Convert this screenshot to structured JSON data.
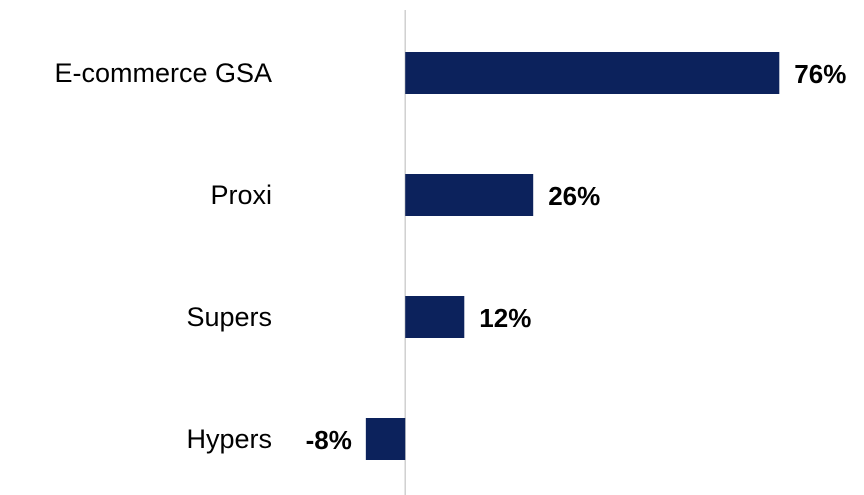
{
  "chart_data": {
    "type": "hbar",
    "categories": [
      "E-commerce GSA",
      "Proxi",
      "Supers",
      "Hypers"
    ],
    "values": [
      76,
      26,
      12,
      -8
    ],
    "value_labels": [
      "76%",
      "26%",
      "12%",
      "-8%"
    ],
    "color": "#0c225c",
    "xlim": [
      -10,
      80
    ]
  }
}
